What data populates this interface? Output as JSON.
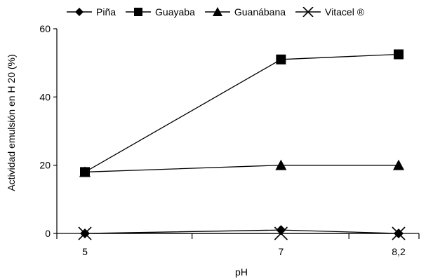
{
  "chart_data": {
    "type": "line",
    "title": "",
    "xlabel": "pH",
    "ylabel": "Actividad emulsión en H 20 (%)",
    "categories": [
      "5",
      "7",
      "8,2"
    ],
    "x": [
      5,
      7,
      8.2
    ],
    "ylim": [
      0,
      60
    ],
    "yticks": [
      0,
      20,
      40,
      60
    ],
    "grid": false,
    "legend_position": "top",
    "series": [
      {
        "name": "Piña",
        "marker": "diamond",
        "values": [
          0,
          1,
          0
        ]
      },
      {
        "name": "Guayaba",
        "marker": "square",
        "values": [
          18,
          51,
          52.5
        ]
      },
      {
        "name": "Guanábana",
        "marker": "triangle",
        "values": [
          18,
          20,
          20
        ]
      },
      {
        "name": "Vitacel ®",
        "marker": "x",
        "values": [
          0,
          0,
          0
        ]
      }
    ]
  }
}
